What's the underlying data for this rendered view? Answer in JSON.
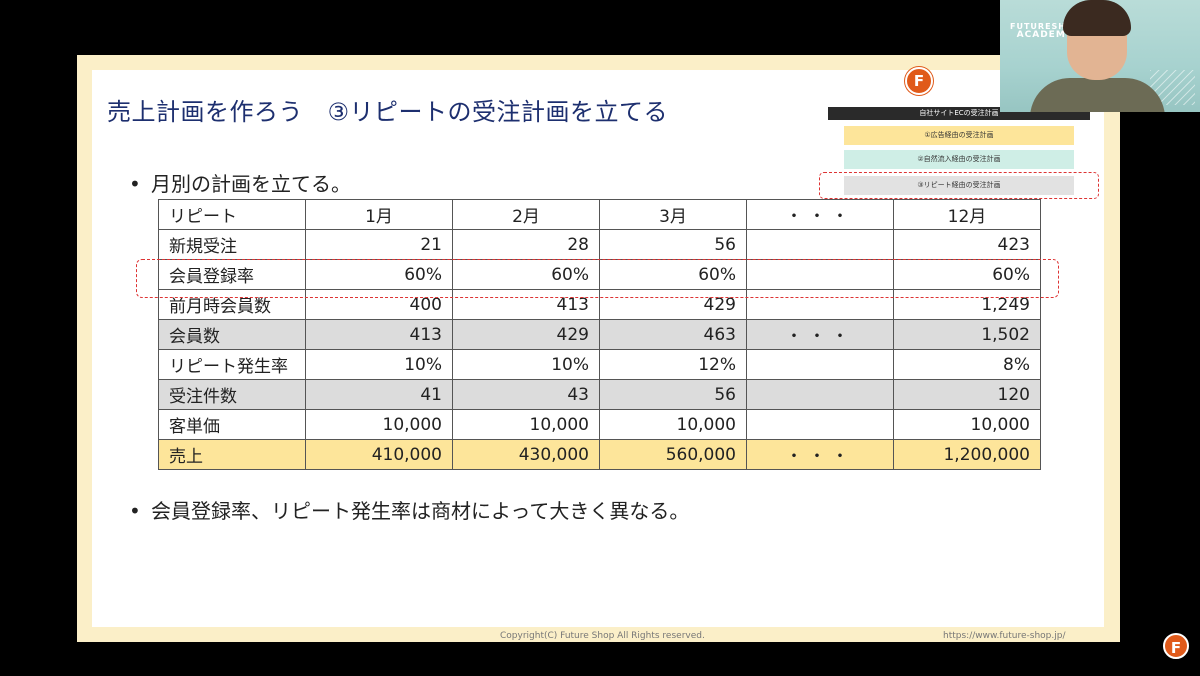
{
  "slide": {
    "title": "売上計画を作ろう　③リピートの受注計画を立てる",
    "logo_letter": "F",
    "bullet1": "月別の計画を立てる。",
    "bullet2": "会員登録率、リピート発生率は商材によって大きく異なる。",
    "bullet_mark": "•",
    "copyright": "Copyright(C) Future Shop All Rights reserved.",
    "url": "https://www.future-shop.jp/"
  },
  "panel": {
    "heading": "自社サイトECの受注計画",
    "items": [
      "①広告経由の受注計画",
      "②自然流入経由の受注計画",
      "③リピート経由の受注計画"
    ]
  },
  "table": {
    "headers": [
      "リピート",
      "1月",
      "2月",
      "3月",
      "・・・",
      "12月"
    ],
    "rows": [
      {
        "label": "新規受注",
        "values": [
          "21",
          "28",
          "56",
          "",
          "423"
        ]
      },
      {
        "label": "会員登録率",
        "values": [
          "60%",
          "60%",
          "60%",
          "",
          "60%"
        ]
      },
      {
        "label": "前月時会員数",
        "values": [
          "400",
          "413",
          "429",
          "",
          "1,249"
        ]
      },
      {
        "label": "会員数",
        "values": [
          "413",
          "429",
          "463",
          "・・・",
          "1,502"
        ]
      },
      {
        "label": "リピート発生率",
        "values": [
          "10%",
          "10%",
          "12%",
          "",
          "8%"
        ]
      },
      {
        "label": "受注件数",
        "values": [
          "41",
          "43",
          "56",
          "",
          "120"
        ]
      },
      {
        "label": "客単価",
        "values": [
          "10,000",
          "10,000",
          "10,000",
          "",
          "10,000"
        ]
      },
      {
        "label": "売上",
        "values": [
          "410,000",
          "430,000",
          "560,000",
          "・・・",
          "1,200,000"
        ]
      }
    ]
  },
  "webcam": {
    "brand_top": "FUTURESHOP",
    "brand_bottom": "ACADEMY"
  },
  "corner_logo_letter": "F",
  "colors": {
    "title": "#1d2f6f",
    "slide_border": "#fbefc8",
    "highlight_yellow": "#fde59a",
    "highlight_gray": "#dcdcdc",
    "dashed_red": "#dd3333",
    "logo_orange": "#e05a1a"
  }
}
